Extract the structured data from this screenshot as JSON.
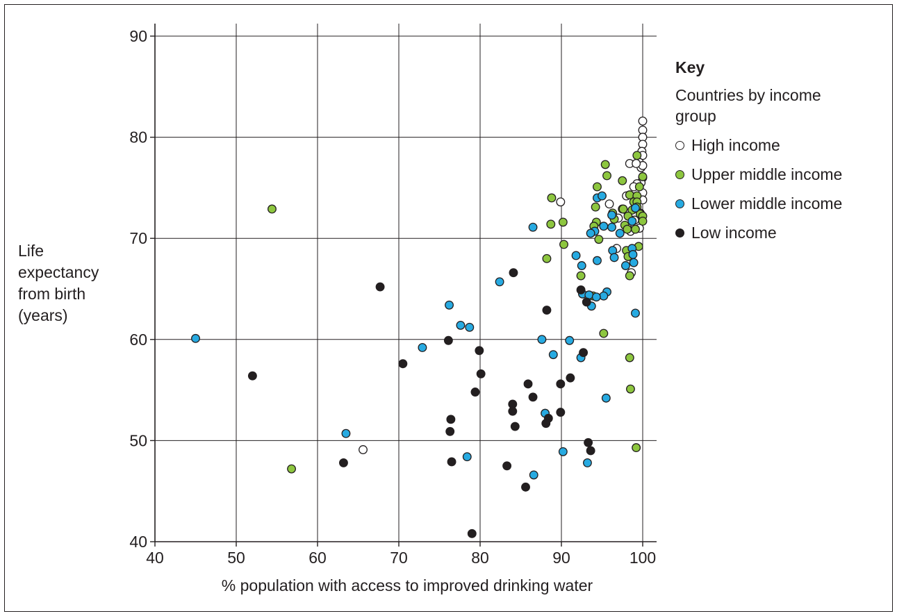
{
  "chart_data": {
    "type": "scatter",
    "title": "",
    "xlabel": "% population with access to improved drinking water",
    "ylabel_lines": [
      "Life",
      "expectancy",
      "from birth",
      "(years)"
    ],
    "xlim": [
      40,
      100
    ],
    "ylim": [
      40,
      90
    ],
    "xticks": [
      40,
      50,
      60,
      70,
      80,
      90,
      100
    ],
    "yticks": [
      40,
      50,
      60,
      70,
      80,
      90
    ],
    "grid": true,
    "legend": {
      "title": "Key",
      "subtitle": "Countries by income group",
      "placement": "right"
    },
    "series": [
      {
        "name": "High income",
        "color": "#ffffff",
        "points": [
          [
            100,
            81.6
          ],
          [
            100,
            80.7
          ],
          [
            100,
            80.0
          ],
          [
            100,
            79.3
          ],
          [
            99.9,
            78.6
          ],
          [
            100,
            78.2
          ],
          [
            99.6,
            77.5
          ],
          [
            99.8,
            77.0
          ],
          [
            100,
            77.2
          ],
          [
            98.4,
            77.4
          ],
          [
            99.2,
            77.4
          ],
          [
            100,
            76.0
          ],
          [
            99.8,
            75.5
          ],
          [
            99.3,
            75.4
          ],
          [
            98.9,
            75.1
          ],
          [
            98.0,
            74.2
          ],
          [
            100,
            74.5
          ],
          [
            99.0,
            74.1
          ],
          [
            100,
            73.8
          ],
          [
            89.9,
            73.6
          ],
          [
            95.9,
            73.4
          ],
          [
            97.5,
            72.9
          ],
          [
            98.2,
            72.5
          ],
          [
            99.7,
            72.5
          ],
          [
            97.0,
            72.0
          ],
          [
            99.0,
            71.8
          ],
          [
            98.1,
            71.1
          ],
          [
            99.6,
            71.0
          ],
          [
            98.5,
            70.7
          ],
          [
            96.8,
            69.0
          ],
          [
            98.6,
            66.6
          ],
          [
            65.6,
            49.1
          ]
        ]
      },
      {
        "name": "Upper middle income",
        "color": "#8dc63f",
        "points": [
          [
            99.3,
            78.2
          ],
          [
            95.4,
            77.3
          ],
          [
            95.6,
            76.2
          ],
          [
            100,
            76.1
          ],
          [
            97.5,
            75.7
          ],
          [
            94.4,
            75.1
          ],
          [
            99.6,
            75.1
          ],
          [
            98.4,
            74.3
          ],
          [
            99.3,
            74.2
          ],
          [
            88.8,
            74.0
          ],
          [
            98.9,
            73.6
          ],
          [
            99.3,
            73.6
          ],
          [
            94.2,
            73.1
          ],
          [
            97.6,
            72.9
          ],
          [
            99.3,
            73.1
          ],
          [
            98.7,
            72.8
          ],
          [
            96.3,
            72.5
          ],
          [
            99.7,
            72.4
          ],
          [
            98.2,
            72.2
          ],
          [
            100,
            72.2
          ],
          [
            100,
            71.7
          ],
          [
            96.5,
            71.9
          ],
          [
            90.2,
            71.6
          ],
          [
            88.7,
            71.4
          ],
          [
            94.3,
            71.6
          ],
          [
            97.8,
            71.3
          ],
          [
            94.0,
            71.2
          ],
          [
            98.1,
            70.9
          ],
          [
            99.1,
            70.9
          ],
          [
            94.6,
            69.9
          ],
          [
            90.3,
            69.4
          ],
          [
            99.5,
            69.2
          ],
          [
            98.0,
            68.8
          ],
          [
            98.2,
            68.2
          ],
          [
            88.2,
            68.0
          ],
          [
            98.4,
            66.3
          ],
          [
            92.4,
            66.3
          ],
          [
            93.9,
            64.3
          ],
          [
            95.2,
            60.6
          ],
          [
            98.4,
            58.2
          ],
          [
            98.5,
            55.1
          ],
          [
            99.2,
            49.3
          ],
          [
            54.4,
            72.9
          ],
          [
            56.8,
            47.2
          ]
        ]
      },
      {
        "name": "Lower middle income",
        "color": "#27aae1",
        "points": [
          [
            94.4,
            74.0
          ],
          [
            95.0,
            74.2
          ],
          [
            96.2,
            72.3
          ],
          [
            99.1,
            73.0
          ],
          [
            98.7,
            71.7
          ],
          [
            86.5,
            71.1
          ],
          [
            95.2,
            71.2
          ],
          [
            96.2,
            71.1
          ],
          [
            94.1,
            70.7
          ],
          [
            93.6,
            70.5
          ],
          [
            97.2,
            70.5
          ],
          [
            98.7,
            69.0
          ],
          [
            96.3,
            68.8
          ],
          [
            98.8,
            68.4
          ],
          [
            91.8,
            68.3
          ],
          [
            96.5,
            68.1
          ],
          [
            94.4,
            67.8
          ],
          [
            98.9,
            67.6
          ],
          [
            97.9,
            67.3
          ],
          [
            92.5,
            67.3
          ],
          [
            82.4,
            65.7
          ],
          [
            95.6,
            64.7
          ],
          [
            95.2,
            64.3
          ],
          [
            92.6,
            64.5
          ],
          [
            93.4,
            64.4
          ],
          [
            94.3,
            64.2
          ],
          [
            93.7,
            63.3
          ],
          [
            76.2,
            63.4
          ],
          [
            99.1,
            62.6
          ],
          [
            77.6,
            61.4
          ],
          [
            78.7,
            61.2
          ],
          [
            72.9,
            59.2
          ],
          [
            87.6,
            60.0
          ],
          [
            91.0,
            59.9
          ],
          [
            89.0,
            58.5
          ],
          [
            92.4,
            58.2
          ],
          [
            95.5,
            54.2
          ],
          [
            45.0,
            60.1
          ],
          [
            63.5,
            50.7
          ],
          [
            88.0,
            52.7
          ],
          [
            78.4,
            48.4
          ],
          [
            90.2,
            48.9
          ],
          [
            93.2,
            47.8
          ],
          [
            86.6,
            46.6
          ]
        ]
      },
      {
        "name": "Low income",
        "color": "#231f20",
        "points": [
          [
            84.1,
            66.6
          ],
          [
            92.4,
            64.9
          ],
          [
            93.1,
            63.7
          ],
          [
            67.7,
            65.2
          ],
          [
            88.2,
            62.9
          ],
          [
            76.1,
            59.9
          ],
          [
            79.9,
            58.9
          ],
          [
            92.7,
            58.7
          ],
          [
            70.5,
            57.6
          ],
          [
            52.0,
            56.4
          ],
          [
            80.1,
            56.6
          ],
          [
            91.1,
            56.2
          ],
          [
            85.9,
            55.6
          ],
          [
            89.9,
            55.6
          ],
          [
            79.4,
            54.8
          ],
          [
            86.5,
            54.3
          ],
          [
            84.0,
            53.6
          ],
          [
            84.0,
            52.9
          ],
          [
            76.4,
            52.1
          ],
          [
            84.3,
            51.4
          ],
          [
            88.4,
            52.2
          ],
          [
            88.1,
            51.7
          ],
          [
            76.3,
            50.9
          ],
          [
            89.9,
            52.8
          ],
          [
            93.3,
            49.8
          ],
          [
            93.6,
            49.0
          ],
          [
            76.5,
            47.9
          ],
          [
            63.2,
            47.8
          ],
          [
            83.3,
            47.5
          ],
          [
            85.6,
            45.4
          ],
          [
            79.0,
            40.8
          ]
        ]
      }
    ]
  }
}
